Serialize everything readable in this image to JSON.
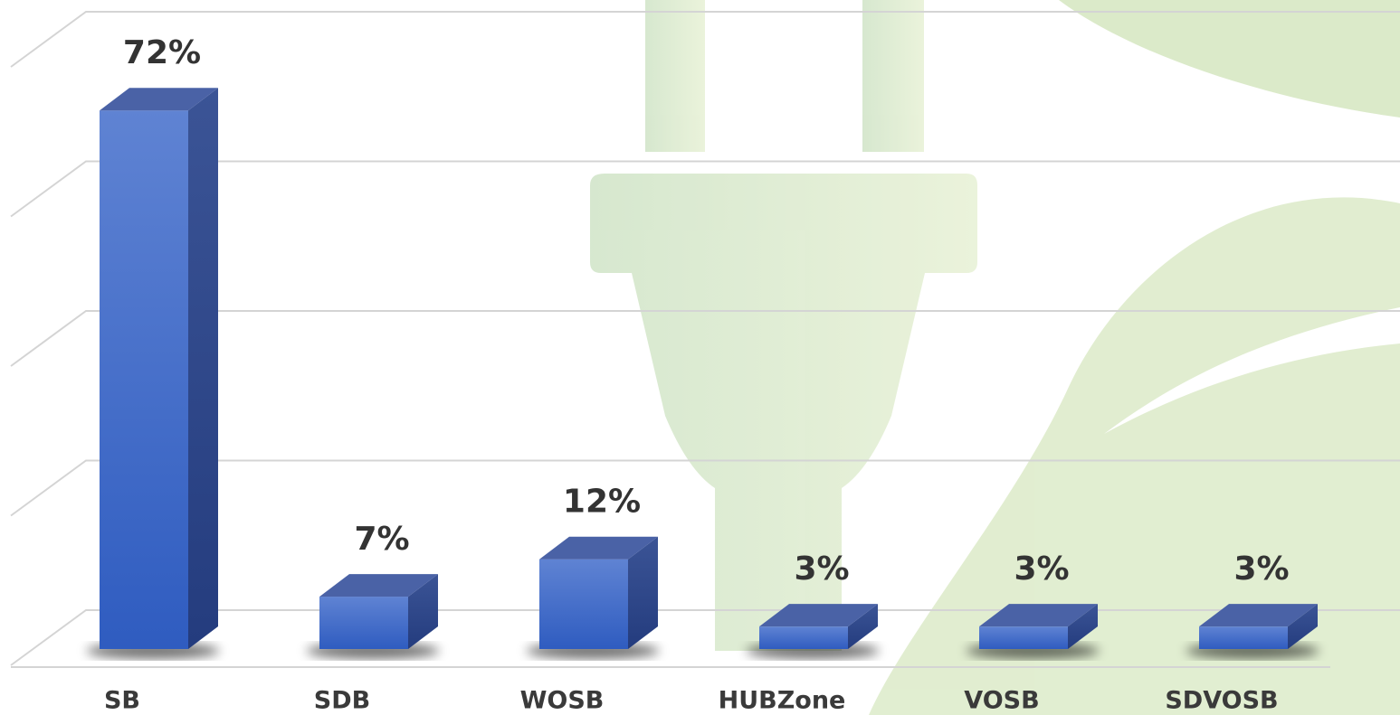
{
  "chart_data": {
    "type": "bar3d",
    "categories": [
      "SB",
      "SDB",
      "WOSB",
      "HUBZone",
      "VOSB",
      "SDVOSB"
    ],
    "values": [
      72,
      7,
      12,
      3,
      3,
      3
    ],
    "value_labels": [
      "72%",
      "7%",
      "12%",
      "3%",
      "3%",
      "3%"
    ],
    "color": "#3b65c8",
    "ylim": [
      0,
      80
    ],
    "yticks": [
      0,
      20,
      40,
      60,
      80
    ],
    "grid": true
  }
}
